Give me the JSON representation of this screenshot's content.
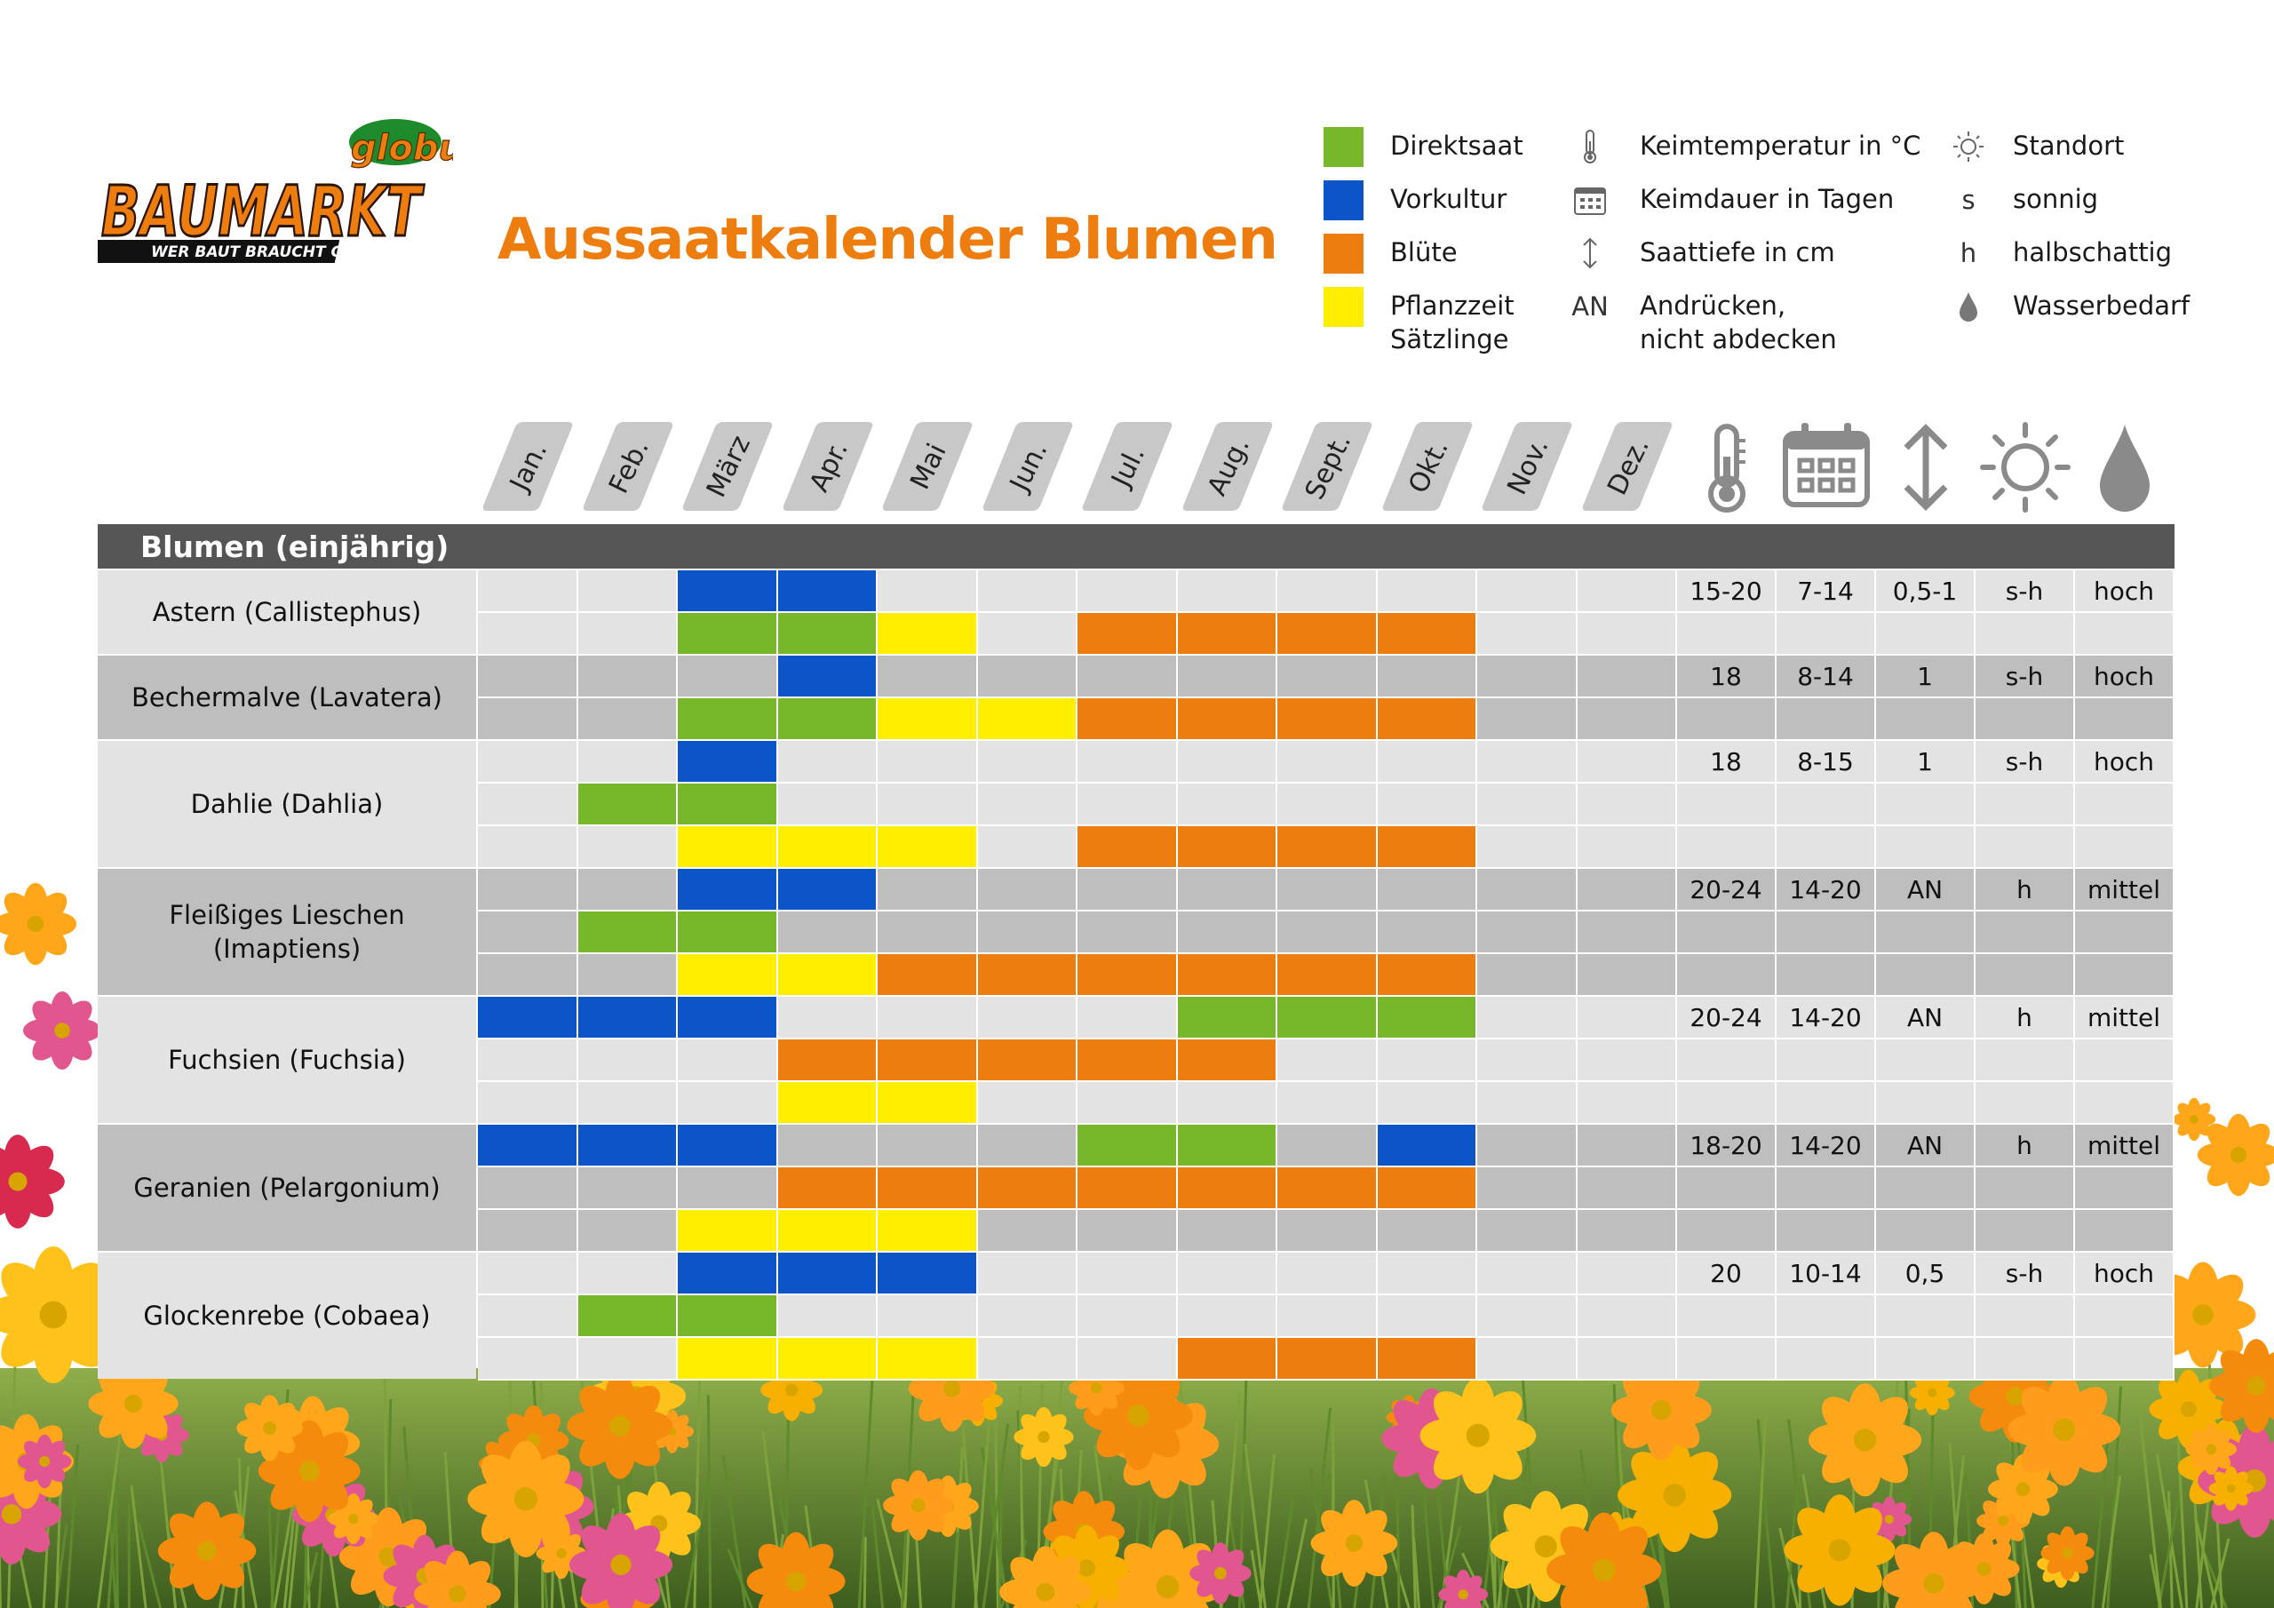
{
  "logo": {
    "brand": "BAUMARKT",
    "badge": "globus",
    "slogan": "WER BAUT BRAUCHT GLOBUS"
  },
  "title": "Aussaatkalender Blumen",
  "colors": {
    "direktsaat": "#76b82a",
    "vorkultur": "#0c55c8",
    "bluete": "#ee7d0f",
    "pflanzzeit": "#ffee00",
    "light": "#e3e3e3",
    "dark": "#bebebe",
    "header": "#555555",
    "accent": "#ee7d0f"
  },
  "legend": {
    "swatches": [
      {
        "label": "Direktsaat",
        "color": "direktsaat"
      },
      {
        "label": "Vorkultur",
        "color": "vorkultur"
      },
      {
        "label": "Blüte",
        "color": "bluete"
      },
      {
        "label": "Pflanzzeit",
        "label2": "Sätzlinge",
        "color": "pflanzzeit"
      }
    ],
    "icons": [
      {
        "icon": "thermometer-icon",
        "label": "Keimtemperatur in °C"
      },
      {
        "icon": "calendar-icon",
        "label": "Keimdauer in Tagen"
      },
      {
        "icon": "depth-arrow-icon",
        "label": "Saattiefe in cm"
      },
      {
        "symbol": "AN",
        "label": "Andrücken,",
        "label2": "nicht abdecken"
      }
    ],
    "location": [
      {
        "icon": "sun-icon",
        "label": "Standort"
      },
      {
        "symbol": "s",
        "label": "sonnig"
      },
      {
        "symbol": "h",
        "label": "halbschattig"
      },
      {
        "icon": "water-drop-icon",
        "label": "Wasserbedarf"
      }
    ]
  },
  "months": [
    "Jan.",
    "Feb.",
    "März",
    "Apr.",
    "Mai",
    "Jun.",
    "Jul.",
    "Aug.",
    "Sept.",
    "Okt.",
    "Nov.",
    "Dez."
  ],
  "section": "Blumen (einjährig)",
  "plants": [
    {
      "name": "Astern (Callistephus)",
      "name2": "",
      "shade": "light",
      "rows": [
        {
          "vorkultur": [
            3,
            4
          ]
        },
        {
          "direktsaat": [
            3,
            4
          ],
          "pflanzzeit": [
            5
          ],
          "bluete": [
            7,
            8,
            9,
            10
          ]
        }
      ],
      "values": [
        "15-20",
        "7-14",
        "0,5-1",
        "s-h",
        "hoch"
      ]
    },
    {
      "name": "Bechermalve (Lavatera)",
      "name2": "",
      "shade": "dark",
      "rows": [
        {
          "vorkultur": [
            4
          ]
        },
        {
          "direktsaat": [
            3,
            4
          ],
          "pflanzzeit": [
            5,
            6
          ],
          "bluete": [
            7,
            8,
            9,
            10
          ]
        }
      ],
      "values": [
        "18",
        "8-14",
        "1",
        "s-h",
        "hoch"
      ]
    },
    {
      "name": "Dahlie (Dahlia)",
      "name2": "",
      "shade": "light",
      "rows": [
        {
          "vorkultur": [
            3
          ]
        },
        {
          "direktsaat": [
            2,
            3
          ]
        },
        {
          "pflanzzeit": [
            3,
            4,
            5
          ],
          "bluete": [
            7,
            8,
            9,
            10
          ]
        }
      ],
      "values": [
        "18",
        "8-15",
        "1",
        "s-h",
        "hoch"
      ]
    },
    {
      "name": "Fleißiges Lieschen",
      "name2": "(Imaptiens)",
      "shade": "dark",
      "rows": [
        {
          "vorkultur": [
            3,
            4
          ]
        },
        {
          "direktsaat": [
            2,
            3
          ]
        },
        {
          "pflanzzeit": [
            3,
            4
          ],
          "bluete": [
            5,
            6,
            7,
            8,
            9,
            10
          ]
        }
      ],
      "values": [
        "20-24",
        "14-20",
        "AN",
        "h",
        "mittel"
      ]
    },
    {
      "name": "Fuchsien (Fuchsia)",
      "name2": "",
      "shade": "light",
      "rows": [
        {
          "vorkultur": [
            1,
            2,
            3
          ],
          "direktsaat": [
            8,
            9,
            10
          ]
        },
        {
          "bluete": [
            4,
            5,
            6,
            7,
            8
          ]
        },
        {
          "pflanzzeit": [
            4,
            5
          ]
        }
      ],
      "values": [
        "20-24",
        "14-20",
        "AN",
        "h",
        "mittel"
      ]
    },
    {
      "name": "Geranien (Pelargonium)",
      "name2": "",
      "shade": "dark",
      "rows": [
        {
          "vorkultur": [
            1,
            2,
            3,
            10
          ],
          "direktsaat": [
            7,
            8
          ]
        },
        {
          "bluete": [
            4,
            5,
            6,
            7,
            8,
            9,
            10
          ]
        },
        {
          "pflanzzeit": [
            3,
            4,
            5
          ]
        }
      ],
      "values": [
        "18-20",
        "14-20",
        "AN",
        "h",
        "mittel"
      ]
    },
    {
      "name": "Glockenrebe (Cobaea)",
      "name2": "",
      "shade": "light",
      "rows": [
        {
          "vorkultur": [
            3,
            4,
            5
          ]
        },
        {
          "direktsaat": [
            2,
            3
          ]
        },
        {
          "pflanzzeit": [
            3,
            4,
            5
          ],
          "bluete": [
            8,
            9,
            10
          ]
        }
      ],
      "values": [
        "20",
        "10-14",
        "0,5",
        "s-h",
        "hoch"
      ]
    }
  ]
}
